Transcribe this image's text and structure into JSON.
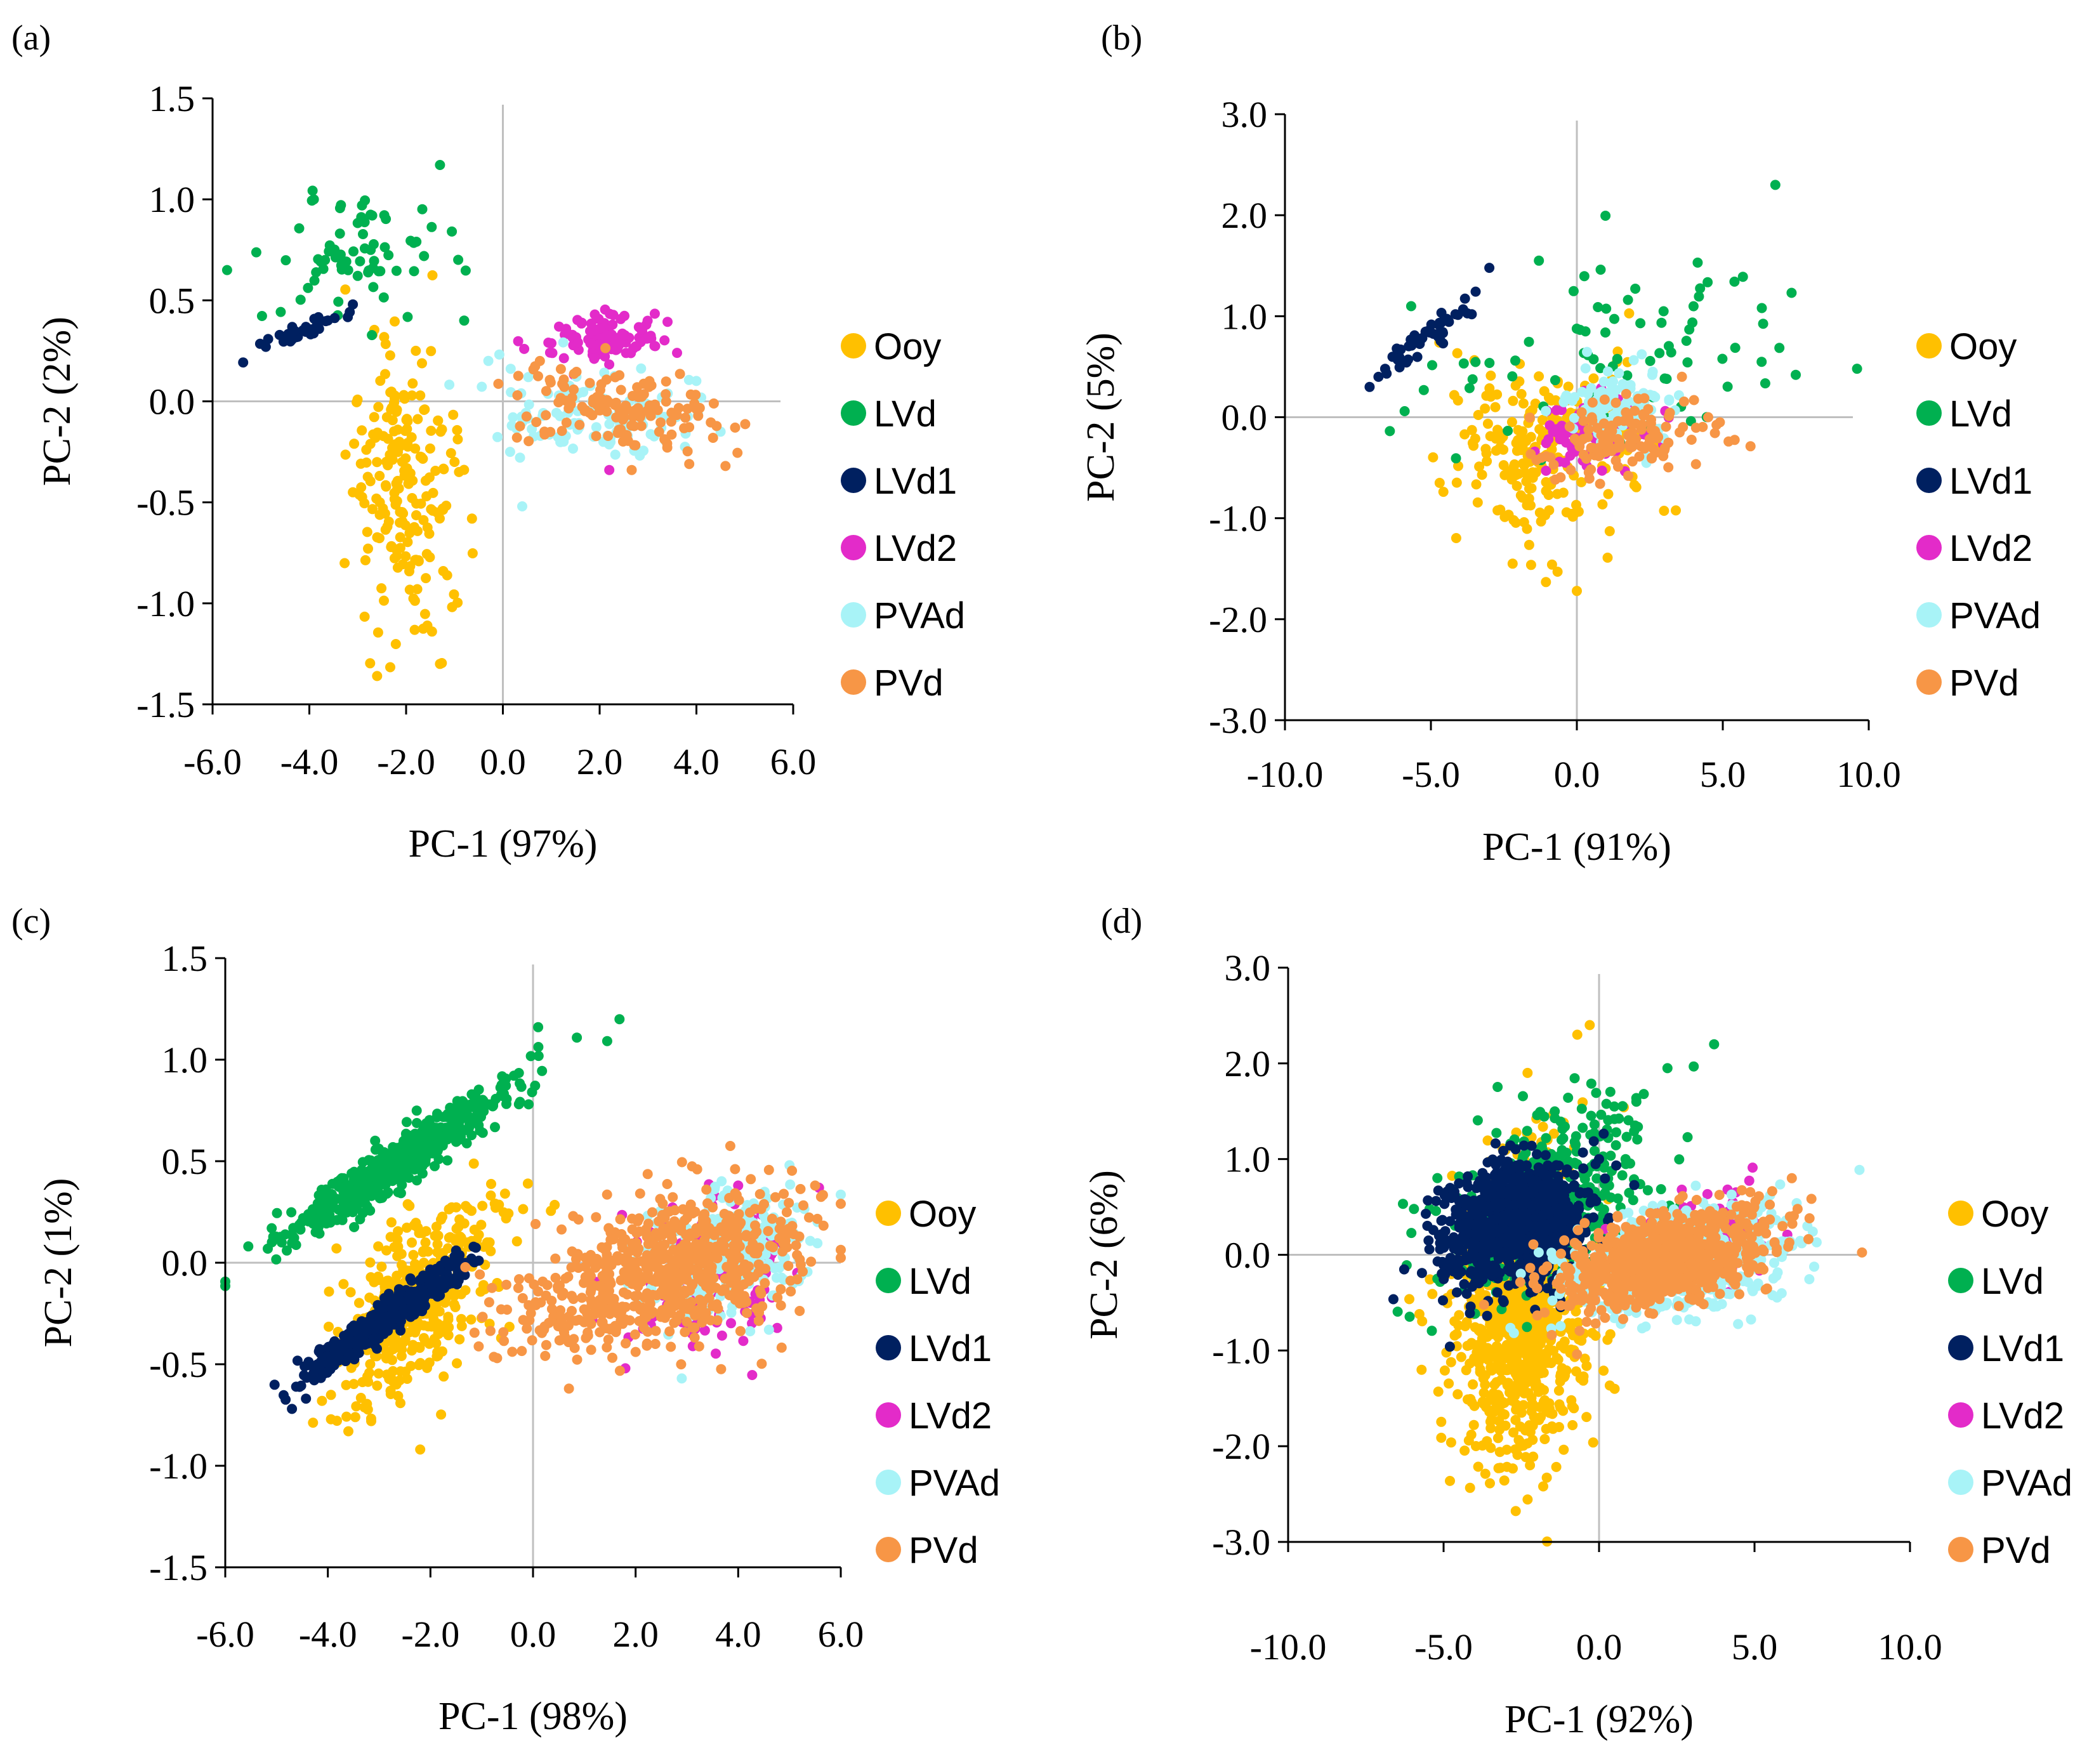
{
  "figure": {
    "series_colors": {
      "Ooy": "#FFC000",
      "LVd": "#00B050",
      "LVd1": "#002060",
      "LVd2": "#E32BC9",
      "PVAd": "#A8F3F7",
      "PVd": "#F79646"
    },
    "panels": [
      {
        "id": "a",
        "label": "(a)"
      },
      {
        "id": "b",
        "label": "(b)"
      },
      {
        "id": "c",
        "label": "(c)"
      },
      {
        "id": "d",
        "label": "(d)"
      }
    ]
  },
  "chart_data": [
    {
      "type": "scatter",
      "panel": "(a)",
      "xlabel": "PC-1 (97%)",
      "ylabel": "PC-2 (2%)",
      "xlim": [
        -6.0,
        6.0
      ],
      "ylim": [
        -1.5,
        1.5
      ],
      "xticks": [
        "-6.0",
        "-4.0",
        "-2.0",
        "0.0",
        "2.0",
        "4.0",
        "6.0"
      ],
      "yticks": [
        "1.5",
        "1.0",
        "0.5",
        "0.0",
        "-0.5",
        "-1.0",
        "-1.5"
      ],
      "legend": [
        "Ooy",
        "LVd",
        "LVd1",
        "LVd2",
        "PVAd",
        "PVd"
      ],
      "series": [
        {
          "name": "Ooy",
          "cluster": {
            "center": [
              -2.1,
              -0.4
            ],
            "spread": [
              0.55,
              0.35
            ],
            "corr": 0.0,
            "n": 200
          },
          "extremes": [
            [
              -2.6,
              -1.36
            ],
            [
              -1.3,
              -1.3
            ],
            [
              -1.8,
              0.25
            ],
            [
              -3.1,
              -0.45
            ],
            [
              -1.0,
              -0.3
            ]
          ]
        },
        {
          "name": "LVd",
          "cluster": {
            "center": [
              -3.0,
              0.72
            ],
            "spread": [
              1.0,
              0.15
            ],
            "corr": 0.2,
            "n": 70
          },
          "extremes": [
            [
              -1.3,
              1.17
            ],
            [
              -5.7,
              0.65
            ],
            [
              -2.7,
              0.92
            ],
            [
              -0.8,
              0.4
            ]
          ]
        },
        {
          "name": "LVd1",
          "cluster": {
            "center": [
              -4.2,
              0.35
            ],
            "spread": [
              0.45,
              0.05
            ],
            "corr": 0.8,
            "n": 35
          },
          "extremes": [
            [
              -4.9,
              0.27
            ],
            [
              -3.1,
              0.48
            ]
          ]
        },
        {
          "name": "LVd2",
          "cluster": {
            "center": [
              2.0,
              0.3
            ],
            "spread": [
              0.55,
              0.06
            ],
            "corr": 0.0,
            "n": 110
          },
          "extremes": [
            [
              1.9,
              0.43
            ],
            [
              2.2,
              -0.34
            ],
            [
              3.6,
              0.24
            ]
          ]
        },
        {
          "name": "PVAd",
          "cluster": {
            "center": [
              2.0,
              -0.07
            ],
            "spread": [
              1.1,
              0.12
            ],
            "corr": -0.2,
            "n": 110
          },
          "extremes": [
            [
              0.4,
              -0.52
            ],
            [
              4.5,
              -0.15
            ],
            [
              -0.3,
              0.2
            ]
          ]
        },
        {
          "name": "PVd",
          "cluster": {
            "center": [
              2.4,
              -0.05
            ],
            "spread": [
              1.0,
              0.1
            ],
            "corr": -0.3,
            "n": 140
          },
          "extremes": [
            [
              4.6,
              -0.32
            ],
            [
              4.8,
              -0.13
            ],
            [
              0.3,
              0.03
            ]
          ]
        }
      ]
    },
    {
      "type": "scatter",
      "panel": "(b)",
      "xlabel": "PC-1 (91%)",
      "ylabel": "PC-2 (5%)",
      "xlim": [
        -10.0,
        10.0
      ],
      "ylim": [
        -3.0,
        3.0
      ],
      "xticks": [
        "-10.0",
        "-5.0",
        "0.0",
        "5.0",
        "10.0"
      ],
      "yticks": [
        "3.0",
        "2.0",
        "1.0",
        "0.0",
        "-1.0",
        "-2.0",
        "-3.0"
      ],
      "legend": [
        "Ooy",
        "LVd",
        "LVd1",
        "LVd2",
        "PVAd",
        "PVd"
      ],
      "series": [
        {
          "name": "Ooy",
          "cluster": {
            "center": [
              -1.0,
              -0.35
            ],
            "spread": [
              1.6,
              0.45
            ],
            "corr": 0.1,
            "n": 230
          },
          "extremes": [
            [
              -2.2,
              -1.45
            ],
            [
              0.0,
              -1.72
            ],
            [
              -4.7,
              -0.65
            ],
            [
              1.4,
              0.65
            ]
          ]
        },
        {
          "name": "LVd",
          "cluster": {
            "center": [
              1.5,
              0.7
            ],
            "spread": [
              3.0,
              0.45
            ],
            "corr": 0.1,
            "n": 75
          },
          "extremes": [
            [
              6.8,
              2.3
            ],
            [
              9.6,
              0.48
            ],
            [
              -1.3,
              1.55
            ],
            [
              -5.9,
              0.06
            ],
            [
              7.5,
              0.42
            ]
          ]
        },
        {
          "name": "LVd1",
          "cluster": {
            "center": [
              -5.2,
              0.8
            ],
            "spread": [
              0.8,
              0.2
            ],
            "corr": 0.9,
            "n": 45
          },
          "extremes": [
            [
              -7.1,
              0.3
            ],
            [
              -3.6,
              1.02
            ]
          ]
        },
        {
          "name": "LVd2",
          "cluster": {
            "center": [
              0.5,
              -0.15
            ],
            "spread": [
              0.9,
              0.18
            ],
            "corr": 0.0,
            "n": 80
          },
          "extremes": [
            [
              -0.4,
              -0.45
            ],
            [
              1.7,
              0.25
            ]
          ]
        },
        {
          "name": "PVAd",
          "cluster": {
            "center": [
              1.2,
              0.1
            ],
            "spread": [
              0.9,
              0.2
            ],
            "corr": 0.0,
            "n": 110
          },
          "extremes": [
            [
              2.6,
              0.45
            ],
            [
              -0.2,
              -0.1
            ]
          ]
        },
        {
          "name": "PVd",
          "cluster": {
            "center": [
              1.8,
              -0.2
            ],
            "spread": [
              1.4,
              0.2
            ],
            "corr": 0.3,
            "n": 130
          },
          "extremes": [
            [
              4.5,
              0.0
            ],
            [
              4.9,
              -0.05
            ],
            [
              3.6,
              0.4
            ]
          ]
        }
      ]
    },
    {
      "type": "scatter",
      "panel": "(c)",
      "xlabel": "PC-1 (98%)",
      "ylabel": "PC-2 (1%)",
      "xlim": [
        -6.0,
        6.0
      ],
      "ylim": [
        -1.5,
        1.5
      ],
      "xticks": [
        "-6.0",
        "-4.0",
        "-2.0",
        "0.0",
        "2.0",
        "4.0",
        "6.0"
      ],
      "yticks": [
        "1.5",
        "1.0",
        "0.5",
        "0.0",
        "-0.5",
        "-1.0",
        "-1.5"
      ],
      "legend": [
        "Ooy",
        "LVd",
        "LVd1",
        "LVd2",
        "PVAd",
        "PVd"
      ],
      "series": [
        {
          "name": "Ooy",
          "cluster": {
            "center": [
              -2.3,
              -0.2
            ],
            "spread": [
              0.8,
              0.25
            ],
            "corr": 0.6,
            "n": 420
          },
          "extremes": [
            [
              -2.2,
              -0.92
            ],
            [
              -3.6,
              -0.83
            ],
            [
              -0.1,
              0.39
            ],
            [
              -0.7,
              -0.1
            ]
          ]
        },
        {
          "name": "LVd",
          "cluster": {
            "center": [
              -2.6,
              0.5
            ],
            "spread": [
              1.1,
              0.19
            ],
            "corr": 0.95,
            "n": 600
          },
          "extremes": [
            [
              0.1,
              1.16
            ],
            [
              -4.9,
              0.1
            ],
            [
              -4.8,
              0.06
            ]
          ]
        },
        {
          "name": "LVd1",
          "cluster": {
            "center": [
              -2.9,
              -0.28
            ],
            "spread": [
              0.7,
              0.13
            ],
            "corr": 0.95,
            "n": 600
          },
          "extremes": [
            [
              -4.7,
              -0.72
            ],
            [
              -1.5,
              0.06
            ]
          ]
        },
        {
          "name": "LVd2",
          "cluster": {
            "center": [
              3.6,
              -0.05
            ],
            "spread": [
              0.8,
              0.2
            ],
            "corr": 0.2,
            "n": 140
          },
          "extremes": [
            [
              4.0,
              0.38
            ],
            [
              3.1,
              -0.35
            ],
            [
              1.8,
              -0.52
            ]
          ]
        },
        {
          "name": "PVAd",
          "cluster": {
            "center": [
              3.8,
              0.05
            ],
            "spread": [
              0.8,
              0.15
            ],
            "corr": 0.3,
            "n": 260
          },
          "extremes": [
            [
              5.0,
              0.48
            ],
            [
              2.9,
              -0.57
            ],
            [
              4.6,
              -0.33
            ]
          ]
        },
        {
          "name": "PVd",
          "cluster": {
            "center": [
              2.5,
              -0.05
            ],
            "spread": [
              1.4,
              0.18
            ],
            "corr": 0.4,
            "n": 700
          },
          "extremes": [
            [
              -0.7,
              -0.47
            ],
            [
              5.5,
              0.38
            ],
            [
              3.2,
              0.46
            ],
            [
              0.7,
              -0.62
            ]
          ]
        }
      ]
    },
    {
      "type": "scatter",
      "panel": "(d)",
      "xlabel": "PC-1 (92%)",
      "ylabel": "PC-2 (6%)",
      "xlim": [
        -10.0,
        10.0
      ],
      "ylim": [
        -3.0,
        3.0
      ],
      "xticks": [
        "-10.0",
        "-5.0",
        "0.0",
        "5.0",
        "10.0"
      ],
      "yticks": [
        "3.0",
        "2.0",
        "1.0",
        "0.0",
        "-1.0",
        "-2.0",
        "-3.0"
      ],
      "legend": [
        "Ooy",
        "LVd",
        "LVd1",
        "LVd2",
        "PVAd",
        "PVd"
      ],
      "series": [
        {
          "name": "Ooy",
          "cluster": {
            "center": [
              -2.5,
              -0.6
            ],
            "spread": [
              1.1,
              0.75
            ],
            "corr": 0.1,
            "n": 900
          },
          "extremes": [
            [
              -0.3,
              2.4
            ],
            [
              -0.7,
              2.3
            ],
            [
              -1.7,
              -1.82
            ],
            [
              0.5,
              -1.4
            ],
            [
              -2.3,
              1.9
            ]
          ]
        },
        {
          "name": "LVd",
          "cluster": {
            "center": [
              -1.5,
              0.6
            ],
            "spread": [
              1.6,
              0.5
            ],
            "corr": 0.3,
            "n": 380
          },
          "extremes": [
            [
              3.7,
              2.2
            ],
            [
              -5.2,
              -0.25
            ],
            [
              2.2,
              1.95
            ],
            [
              1.2,
              1.6
            ]
          ]
        },
        {
          "name": "LVd1",
          "cluster": {
            "center": [
              -2.7,
              0.3
            ],
            "spread": [
              1.1,
              0.32
            ],
            "corr": 0.2,
            "n": 950
          },
          "extremes": [
            [
              -4.9,
              0.15
            ],
            [
              0.0,
              1.0
            ],
            [
              -2.0,
              1.05
            ]
          ]
        },
        {
          "name": "LVd2",
          "cluster": {
            "center": [
              3.0,
              0.1
            ],
            "spread": [
              1.0,
              0.25
            ],
            "corr": 0.3,
            "n": 160
          },
          "extremes": [
            [
              4.3,
              0.55
            ],
            [
              1.1,
              -0.55
            ]
          ]
        },
        {
          "name": "PVAd",
          "cluster": {
            "center": [
              2.5,
              -0.1
            ],
            "spread": [
              1.8,
              0.3
            ],
            "corr": 0.3,
            "n": 500
          },
          "extremes": [
            [
              6.7,
              0.3
            ],
            [
              1.5,
              -0.75
            ],
            [
              5.5,
              0.1
            ]
          ]
        },
        {
          "name": "PVd",
          "cluster": {
            "center": [
              2.0,
              -0.05
            ],
            "spread": [
              1.7,
              0.25
            ],
            "corr": 0.45,
            "n": 800
          },
          "extremes": [
            [
              6.2,
              0.8
            ],
            [
              -0.4,
              -0.7
            ],
            [
              5.9,
              0.3
            ]
          ]
        }
      ]
    }
  ]
}
